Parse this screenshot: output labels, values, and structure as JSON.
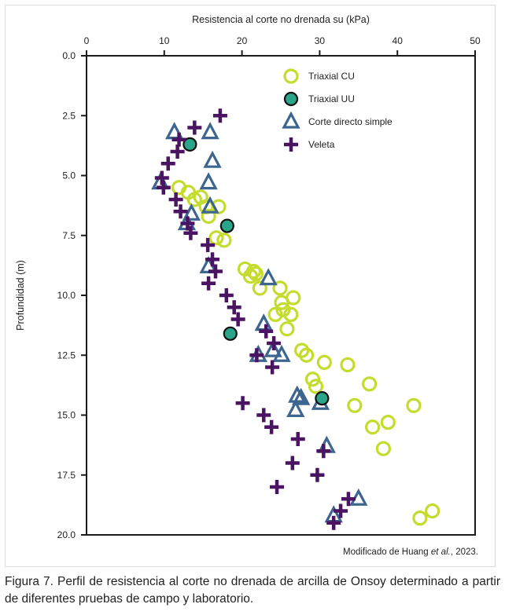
{
  "chart_data": {
    "type": "scatter",
    "title": "",
    "xlabel": "Resistencia al corte no drenada su (kPa)",
    "ylabel": "Profundidad (m)",
    "xlim": [
      0,
      50
    ],
    "ylim": [
      0,
      20
    ],
    "y_inverted": true,
    "x_axis_position": "top",
    "x_ticks": [
      "0",
      "10",
      "20",
      "30",
      "40",
      "50"
    ],
    "x_tick_values": [
      0,
      10,
      20,
      30,
      40,
      50
    ],
    "y_ticks": [
      "0.0",
      "2.5",
      "5.0",
      "7.5",
      "10.0",
      "12.5",
      "15.0",
      "17.5",
      "20.0"
    ],
    "y_tick_values": [
      0,
      2.5,
      5,
      7.5,
      10,
      12.5,
      15,
      17.5,
      20
    ],
    "grid": false,
    "legend_position": "top-right",
    "series": [
      {
        "name": "Triaxial CU",
        "marker": "open-circle",
        "color": "#c5dc2e",
        "points": [
          [
            11.9,
            5.5
          ],
          [
            13.1,
            5.7
          ],
          [
            13.9,
            6.0
          ],
          [
            14.7,
            5.9
          ],
          [
            15.4,
            6.3
          ],
          [
            17.0,
            6.3
          ],
          [
            15.7,
            6.7
          ],
          [
            16.7,
            7.6
          ],
          [
            17.7,
            7.7
          ],
          [
            20.4,
            8.9
          ],
          [
            21.5,
            9.0
          ],
          [
            21.8,
            9.1
          ],
          [
            21.1,
            9.2
          ],
          [
            22.3,
            9.7
          ],
          [
            24.9,
            9.7
          ],
          [
            26.6,
            10.1
          ],
          [
            25.1,
            10.3
          ],
          [
            25.3,
            10.6
          ],
          [
            24.3,
            10.8
          ],
          [
            26.3,
            10.8
          ],
          [
            25.8,
            11.4
          ],
          [
            27.7,
            12.3
          ],
          [
            28.3,
            12.5
          ],
          [
            30.6,
            12.8
          ],
          [
            33.6,
            12.9
          ],
          [
            29.1,
            13.5
          ],
          [
            29.5,
            13.8
          ],
          [
            36.4,
            13.7
          ],
          [
            34.5,
            14.6
          ],
          [
            42.1,
            14.6
          ],
          [
            36.8,
            15.5
          ],
          [
            38.8,
            15.3
          ],
          [
            38.2,
            16.4
          ],
          [
            42.9,
            19.3
          ],
          [
            44.5,
            19.0
          ]
        ]
      },
      {
        "name": "Triaxial UU",
        "marker": "filled-circle",
        "color": "#2aa58a",
        "edge_color": "#111111",
        "points": [
          [
            13.3,
            3.7
          ],
          [
            18.1,
            7.1
          ],
          [
            18.5,
            11.6
          ],
          [
            30.3,
            14.3
          ]
        ]
      },
      {
        "name": "Corte directo simple",
        "marker": "open-triangle",
        "color": "#3c6590",
        "points": [
          [
            11.3,
            3.2
          ],
          [
            15.9,
            3.2
          ],
          [
            16.2,
            4.4
          ],
          [
            9.5,
            5.3
          ],
          [
            15.7,
            5.3
          ],
          [
            15.9,
            6.3
          ],
          [
            13.5,
            6.6
          ],
          [
            12.9,
            7.0
          ],
          [
            15.7,
            8.8
          ],
          [
            23.4,
            9.3
          ],
          [
            22.8,
            11.2
          ],
          [
            24.0,
            12.3
          ],
          [
            25.1,
            12.5
          ],
          [
            22.1,
            12.5
          ],
          [
            27.1,
            14.2
          ],
          [
            27.6,
            14.3
          ],
          [
            26.9,
            14.8
          ],
          [
            30.1,
            14.5
          ],
          [
            30.9,
            16.3
          ],
          [
            35.0,
            18.5
          ],
          [
            31.8,
            19.2
          ]
        ]
      },
      {
        "name": "Veleta",
        "marker": "plus",
        "color": "#4a1462",
        "points": [
          [
            17.2,
            2.5
          ],
          [
            13.9,
            3.0
          ],
          [
            11.9,
            3.5
          ],
          [
            11.7,
            4.0
          ],
          [
            10.5,
            4.5
          ],
          [
            9.7,
            5.1
          ],
          [
            9.9,
            5.5
          ],
          [
            11.5,
            6.0
          ],
          [
            12.1,
            6.5
          ],
          [
            13.0,
            7.0
          ],
          [
            13.4,
            7.4
          ],
          [
            15.6,
            7.9
          ],
          [
            16.2,
            8.5
          ],
          [
            16.6,
            9.0
          ],
          [
            15.7,
            9.5
          ],
          [
            18.0,
            10.0
          ],
          [
            19.0,
            10.5
          ],
          [
            19.5,
            11.0
          ],
          [
            23.1,
            11.5
          ],
          [
            24.1,
            12.0
          ],
          [
            21.9,
            12.5
          ],
          [
            23.9,
            13.0
          ],
          [
            20.1,
            14.5
          ],
          [
            22.8,
            15.0
          ],
          [
            23.8,
            15.5
          ],
          [
            27.2,
            16.0
          ],
          [
            30.5,
            16.5
          ],
          [
            26.5,
            17.0
          ],
          [
            29.7,
            17.5
          ],
          [
            24.5,
            18.0
          ],
          [
            33.7,
            18.5
          ],
          [
            32.7,
            19.0
          ],
          [
            31.8,
            19.5
          ]
        ]
      }
    ]
  },
  "source_note": {
    "prefix": "Modificado de Huang ",
    "italic": "et al.",
    "suffix": ", 2023."
  },
  "caption": "Figura 7. Perfil de resistencia al corte no drenada de arcilla de Onsoy determinado a partir de diferentes pruebas de campo y laboratorio."
}
